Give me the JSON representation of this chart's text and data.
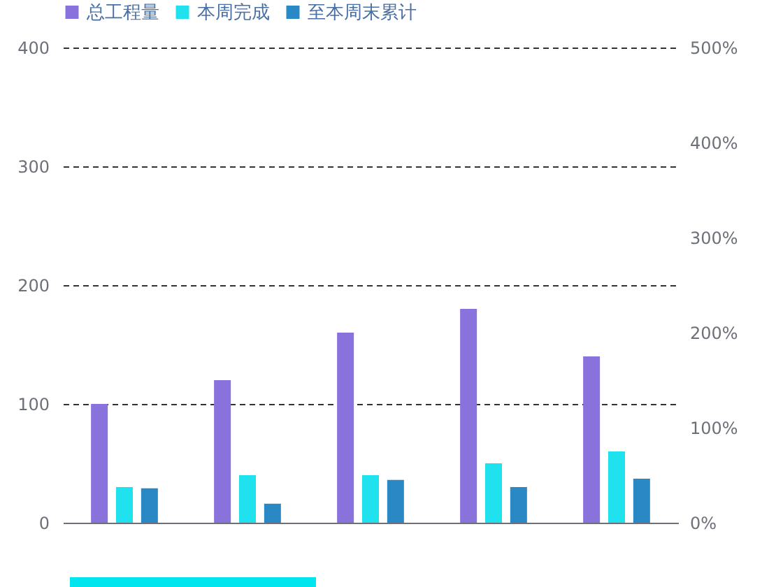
{
  "chart_data": {
    "type": "bar",
    "categories": [
      null,
      null,
      null,
      null,
      null
    ],
    "series": [
      {
        "name": "总工程量",
        "color": "#8a72dc",
        "values": [
          100,
          120,
          160,
          180,
          140
        ]
      },
      {
        "name": "本周完成",
        "color": "#1fe2ee",
        "values": [
          30,
          40,
          40,
          50,
          60
        ]
      },
      {
        "name": "至本周末累计",
        "color": "#2a89c4",
        "values": [
          29,
          16,
          36,
          30,
          37
        ]
      }
    ],
    "ylim": [
      0,
      400
    ],
    "yticks": [
      0,
      100,
      200,
      300,
      400
    ],
    "y2lim": [
      0,
      500
    ],
    "y2ticks": [
      {
        "value": 0,
        "label": "0%"
      },
      {
        "value": 100,
        "label": "100%"
      },
      {
        "value": 200,
        "label": "200%"
      },
      {
        "value": 300,
        "label": "300%"
      },
      {
        "value": 400,
        "label": "400%"
      },
      {
        "value": 500,
        "label": "500%"
      }
    ],
    "grid": "y",
    "legend": "top"
  }
}
